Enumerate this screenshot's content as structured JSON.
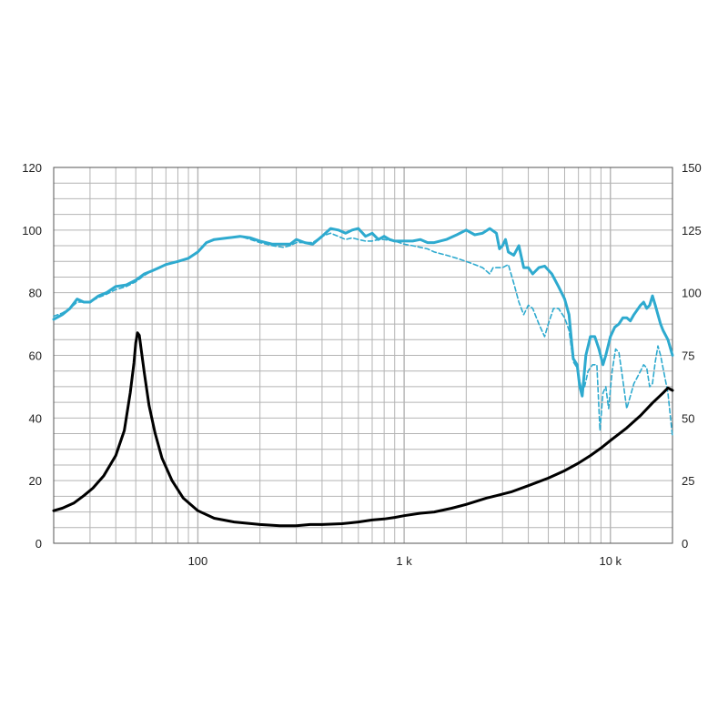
{
  "chart_data": {
    "type": "line",
    "x_scale": "log",
    "xlim": [
      20,
      20000
    ],
    "ylim_left": [
      0,
      120
    ],
    "ylim_right": [
      0,
      150
    ],
    "grid": true,
    "x_tick_labels": [
      {
        "value": 100,
        "label": "100"
      },
      {
        "value": 1000,
        "label": "1 k"
      },
      {
        "value": 10000,
        "label": "10 k"
      }
    ],
    "y_left_ticks": [
      0,
      20,
      40,
      60,
      80,
      100,
      120
    ],
    "y_right_ticks": [
      0,
      25,
      50,
      75,
      100,
      125,
      150
    ],
    "colors": {
      "response": "#2eaacf",
      "impedance": "#000000",
      "grid": "#b4b4b4"
    },
    "series": [
      {
        "axis": "left",
        "style": "solid",
        "points": [
          [
            20,
            71.5
          ],
          [
            22,
            73
          ],
          [
            24,
            75
          ],
          [
            26,
            78
          ],
          [
            28,
            77
          ],
          [
            30,
            77
          ],
          [
            33,
            79
          ],
          [
            36,
            80
          ],
          [
            40,
            82
          ],
          [
            45,
            82.5
          ],
          [
            50,
            84
          ],
          [
            55,
            86
          ],
          [
            60,
            87
          ],
          [
            65,
            88
          ],
          [
            70,
            89
          ],
          [
            80,
            90
          ],
          [
            90,
            91
          ],
          [
            100,
            93
          ],
          [
            110,
            96
          ],
          [
            120,
            97
          ],
          [
            140,
            97.5
          ],
          [
            160,
            98
          ],
          [
            180,
            97.5
          ],
          [
            200,
            96.5
          ],
          [
            230,
            95.5
          ],
          [
            260,
            95.5
          ],
          [
            280,
            95.5
          ],
          [
            300,
            97
          ],
          [
            330,
            96
          ],
          [
            360,
            95.5
          ],
          [
            400,
            98
          ],
          [
            440,
            100.5
          ],
          [
            480,
            100
          ],
          [
            520,
            99
          ],
          [
            560,
            100
          ],
          [
            600,
            100.5
          ],
          [
            650,
            98
          ],
          [
            700,
            99
          ],
          [
            750,
            97
          ],
          [
            800,
            98
          ],
          [
            850,
            97
          ],
          [
            900,
            96.5
          ],
          [
            1000,
            96.5
          ],
          [
            1100,
            96.5
          ],
          [
            1200,
            97
          ],
          [
            1300,
            96
          ],
          [
            1400,
            96
          ],
          [
            1600,
            97
          ],
          [
            1800,
            98.5
          ],
          [
            2000,
            100
          ],
          [
            2200,
            98.5
          ],
          [
            2400,
            99
          ],
          [
            2600,
            100.5
          ],
          [
            2800,
            99
          ],
          [
            2900,
            94
          ],
          [
            3000,
            95
          ],
          [
            3100,
            97
          ],
          [
            3200,
            93
          ],
          [
            3400,
            92
          ],
          [
            3600,
            95
          ],
          [
            3800,
            88
          ],
          [
            4000,
            88
          ],
          [
            4200,
            86
          ],
          [
            4500,
            88
          ],
          [
            4800,
            88.5
          ],
          [
            5200,
            86
          ],
          [
            5600,
            82
          ],
          [
            6000,
            78
          ],
          [
            6300,
            73
          ],
          [
            6600,
            59
          ],
          [
            6900,
            57
          ],
          [
            7100,
            50
          ],
          [
            7300,
            47
          ],
          [
            7600,
            60
          ],
          [
            8000,
            66
          ],
          [
            8400,
            66
          ],
          [
            8800,
            62
          ],
          [
            9200,
            57
          ],
          [
            9500,
            60
          ],
          [
            10000,
            66
          ],
          [
            10500,
            69
          ],
          [
            11000,
            70
          ],
          [
            11500,
            72
          ],
          [
            12000,
            72
          ],
          [
            12500,
            71
          ],
          [
            13000,
            73
          ],
          [
            14000,
            76
          ],
          [
            14500,
            77
          ],
          [
            15000,
            75
          ],
          [
            15500,
            76
          ],
          [
            16000,
            79
          ],
          [
            16500,
            76
          ],
          [
            17000,
            73
          ],
          [
            17500,
            70
          ],
          [
            18000,
            68
          ],
          [
            19000,
            65
          ],
          [
            20000,
            60
          ]
        ]
      },
      {
        "axis": "left",
        "style": "dashed",
        "points": [
          [
            20,
            72.5
          ],
          [
            22,
            73.5
          ],
          [
            24,
            75
          ],
          [
            26,
            77
          ],
          [
            28,
            77
          ],
          [
            30,
            77
          ],
          [
            33,
            78.5
          ],
          [
            36,
            79.5
          ],
          [
            40,
            81
          ],
          [
            45,
            82
          ],
          [
            50,
            83.5
          ],
          [
            55,
            85.5
          ],
          [
            60,
            87
          ],
          [
            65,
            88
          ],
          [
            70,
            89
          ],
          [
            80,
            90
          ],
          [
            90,
            91
          ],
          [
            100,
            93
          ],
          [
            110,
            96
          ],
          [
            120,
            97
          ],
          [
            140,
            97.5
          ],
          [
            160,
            98
          ],
          [
            180,
            97
          ],
          [
            200,
            96
          ],
          [
            230,
            95
          ],
          [
            260,
            94.5
          ],
          [
            280,
            95
          ],
          [
            300,
            96
          ],
          [
            330,
            96
          ],
          [
            360,
            96
          ],
          [
            400,
            98
          ],
          [
            440,
            99
          ],
          [
            480,
            98
          ],
          [
            520,
            97
          ],
          [
            560,
            97.5
          ],
          [
            600,
            97
          ],
          [
            650,
            96.5
          ],
          [
            700,
            96.5
          ],
          [
            750,
            97
          ],
          [
            800,
            97
          ],
          [
            900,
            96.5
          ],
          [
            1000,
            95.5
          ],
          [
            1100,
            95
          ],
          [
            1200,
            94.5
          ],
          [
            1300,
            94
          ],
          [
            1400,
            93
          ],
          [
            1600,
            92
          ],
          [
            1800,
            91
          ],
          [
            2000,
            90
          ],
          [
            2200,
            89
          ],
          [
            2400,
            88
          ],
          [
            2600,
            86
          ],
          [
            2700,
            88
          ],
          [
            2800,
            88
          ],
          [
            3000,
            88
          ],
          [
            3200,
            89
          ],
          [
            3400,
            83
          ],
          [
            3600,
            77
          ],
          [
            3800,
            73
          ],
          [
            4000,
            76
          ],
          [
            4200,
            75
          ],
          [
            4500,
            70
          ],
          [
            4800,
            66
          ],
          [
            5000,
            70
          ],
          [
            5300,
            75
          ],
          [
            5600,
            75
          ],
          [
            6000,
            72
          ],
          [
            6300,
            68
          ],
          [
            6600,
            58
          ],
          [
            6900,
            56
          ],
          [
            7200,
            50
          ],
          [
            7500,
            50
          ],
          [
            7800,
            55
          ],
          [
            8200,
            57
          ],
          [
            8600,
            57
          ],
          [
            8900,
            36
          ],
          [
            9200,
            48
          ],
          [
            9500,
            50
          ],
          [
            9800,
            43
          ],
          [
            10200,
            55
          ],
          [
            10600,
            62
          ],
          [
            11000,
            61
          ],
          [
            11500,
            52
          ],
          [
            12000,
            43
          ],
          [
            12500,
            47
          ],
          [
            13000,
            51
          ],
          [
            13500,
            53
          ],
          [
            14000,
            55
          ],
          [
            14500,
            57
          ],
          [
            15000,
            56
          ],
          [
            15500,
            50
          ],
          [
            16000,
            51
          ],
          [
            16500,
            58
          ],
          [
            17000,
            63
          ],
          [
            17500,
            60
          ],
          [
            18000,
            56
          ],
          [
            19000,
            48
          ],
          [
            20000,
            34
          ]
        ]
      },
      {
        "axis": "right",
        "style": "solid",
        "points": [
          [
            20,
            13
          ],
          [
            22,
            14
          ],
          [
            25,
            16
          ],
          [
            28,
            19
          ],
          [
            31,
            22
          ],
          [
            35,
            27
          ],
          [
            40,
            35
          ],
          [
            44,
            45
          ],
          [
            47,
            60
          ],
          [
            49,
            72
          ],
          [
            50,
            80
          ],
          [
            51,
            84
          ],
          [
            52,
            83
          ],
          [
            53,
            78
          ],
          [
            55,
            68
          ],
          [
            58,
            55
          ],
          [
            62,
            44
          ],
          [
            67,
            34
          ],
          [
            75,
            25
          ],
          [
            85,
            18
          ],
          [
            100,
            13
          ],
          [
            120,
            10
          ],
          [
            150,
            8.5
          ],
          [
            200,
            7.5
          ],
          [
            250,
            7
          ],
          [
            300,
            7
          ],
          [
            350,
            7.5
          ],
          [
            400,
            7.5
          ],
          [
            500,
            7.8
          ],
          [
            600,
            8.5
          ],
          [
            700,
            9.3
          ],
          [
            800,
            9.7
          ],
          [
            900,
            10.3
          ],
          [
            1000,
            11
          ],
          [
            1200,
            12
          ],
          [
            1400,
            12.5
          ],
          [
            1700,
            14
          ],
          [
            2000,
            15.5
          ],
          [
            2500,
            18
          ],
          [
            2800,
            19
          ],
          [
            3300,
            20.5
          ],
          [
            4000,
            23
          ],
          [
            5000,
            26
          ],
          [
            6000,
            29
          ],
          [
            7000,
            32
          ],
          [
            8000,
            35
          ],
          [
            9000,
            38
          ],
          [
            10000,
            41
          ],
          [
            12000,
            46
          ],
          [
            14000,
            51
          ],
          [
            16000,
            56
          ],
          [
            18000,
            60
          ],
          [
            19000,
            62
          ],
          [
            20000,
            61
          ]
        ]
      }
    ]
  }
}
